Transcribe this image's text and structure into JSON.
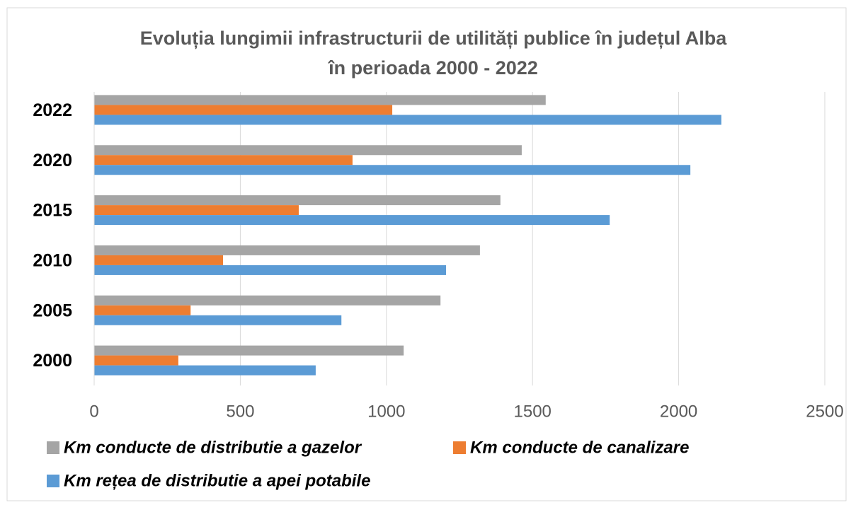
{
  "chart_data": {
    "type": "hbar",
    "title": [
      "Evoluția lungimii infrastructurii de utilități publice în județul Alba",
      "în perioada 2000 - 2022"
    ],
    "categories": [
      "2022",
      "2020",
      "2015",
      "2010",
      "2005",
      "2000"
    ],
    "series": [
      {
        "name": "Km conducte de distributie a gazelor",
        "color": "#a5a5a5",
        "values": [
          1545,
          1463,
          1390,
          1320,
          1185,
          1059
        ]
      },
      {
        "name": "Km conducte de canalizare",
        "color": "#ed7d31",
        "values": [
          1020,
          884,
          700,
          441,
          330,
          288
        ]
      },
      {
        "name": "Km rețea de distributie a apei potabile",
        "color": "#5b9bd5",
        "values": [
          2146,
          2040,
          1764,
          1204,
          846,
          758
        ]
      }
    ],
    "xlim": [
      0,
      2500
    ],
    "xticks": [
      0,
      500,
      1000,
      1500,
      2000,
      2500
    ],
    "grid": true,
    "legend": "bottom"
  }
}
